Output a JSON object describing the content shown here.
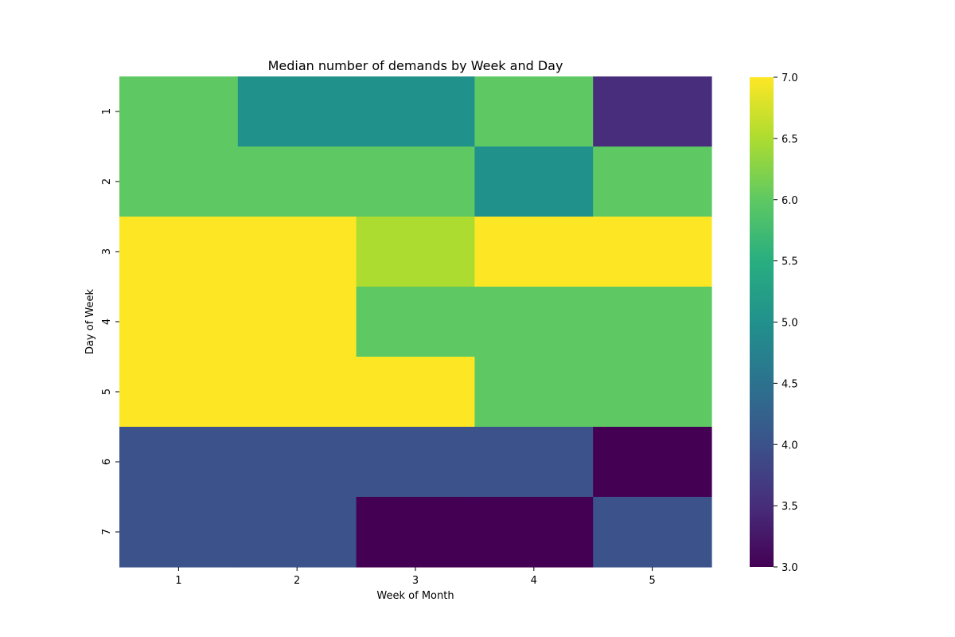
{
  "chart_data": {
    "type": "heatmap",
    "title": "Median number of demands by Week and Day",
    "xlabel": "Week of Month",
    "ylabel": "Day of Week",
    "x_categories": [
      "1",
      "2",
      "3",
      "4",
      "5"
    ],
    "y_categories": [
      "1",
      "2",
      "3",
      "4",
      "5",
      "6",
      "7"
    ],
    "values": [
      [
        6,
        5,
        5,
        6,
        3.5
      ],
      [
        6,
        6,
        6,
        5,
        6
      ],
      [
        7,
        7,
        6.5,
        7,
        7
      ],
      [
        7,
        7,
        6,
        6,
        6
      ],
      [
        7,
        7,
        7,
        6,
        6
      ],
      [
        4,
        4,
        4,
        4,
        3
      ],
      [
        4,
        4,
        3,
        3,
        4
      ]
    ],
    "colorbar": {
      "min": 3.0,
      "max": 7.0,
      "ticks": [
        "3.0",
        "3.5",
        "4.0",
        "4.5",
        "5.0",
        "5.5",
        "6.0",
        "6.5",
        "7.0"
      ],
      "colormap": "viridis"
    }
  }
}
